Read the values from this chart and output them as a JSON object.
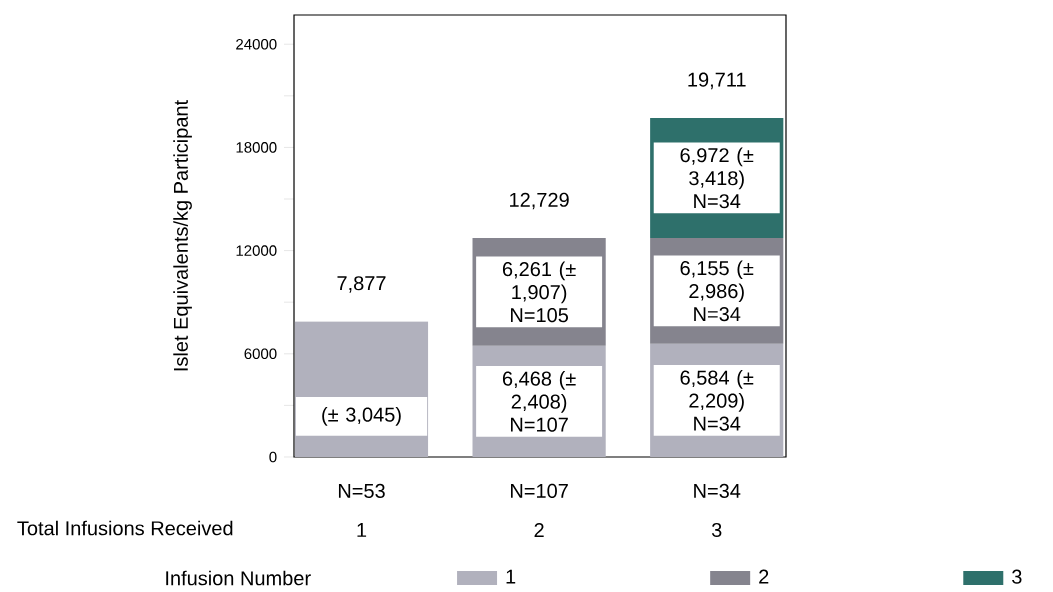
{
  "chart_data": {
    "type": "bar",
    "stacked": true,
    "ylabel": "Islet Equivalents/kg Participant",
    "xlabel": "Total Infusions Received",
    "categories": [
      "N=53",
      "N=107",
      "N=34"
    ],
    "annotations": [
      "1",
      "2",
      "3",
      "(± 3,045)"
    ],
    "legend_title": "Infusion Number",
    "legend": "bottom",
    "series": [
      {
        "name": "1",
        "color": "#b1b1bd",
        "values": [
          7877,
          6468,
          6584
        ],
        "value_labels": [
          null,
          "6,468 (± 2,408) N=107",
          "6,584 (± 2,209) N=34"
        ]
      },
      {
        "name": "2",
        "color": "#85848e",
        "values": [
          null,
          6261,
          6155
        ],
        "value_labels": [
          null,
          "6,261 (± 1,907) N=105",
          "6,155 (± 2,986) N=34"
        ]
      },
      {
        "name": "3",
        "color": "#2e706b",
        "values": [
          null,
          null,
          6972
        ],
        "value_labels": [
          null,
          null,
          "6,972 (± 3,418) N=34"
        ]
      }
    ],
    "totals": [
      "7,877",
      "12,729",
      "19,711"
    ],
    "ylim": [
      0,
      25700
    ],
    "yticks": [
      0,
      {
        "value": 3000,
        "label": null
      },
      6000,
      {
        "value": 9000,
        "label": null
      },
      12000,
      {
        "value": 15000,
        "label": null
      },
      18000,
      {
        "value": 21000,
        "label": null
      },
      24000
    ]
  }
}
